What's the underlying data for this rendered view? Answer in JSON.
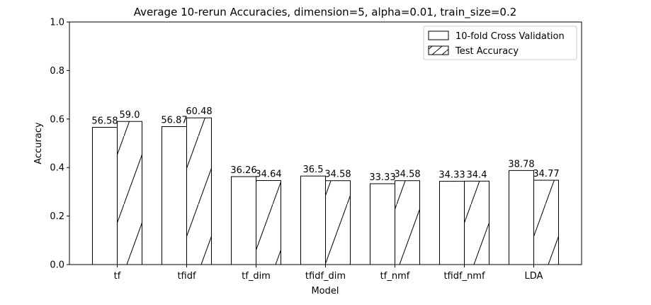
{
  "chart_data": {
    "type": "bar",
    "title": "Average 10-rerun Accuracies, dimension=5, alpha=0.01, train_size=0.2",
    "xlabel": "Model",
    "ylabel": "Accuracy",
    "ylim": [
      0,
      1.0
    ],
    "yticks": [
      "0.0",
      "0.2",
      "0.4",
      "0.6",
      "0.8",
      "1.0"
    ],
    "categories": [
      "tf",
      "tfidf",
      "tf_dim",
      "tfidf_dim",
      "tf_nmf",
      "tfidf_nmf",
      "LDA"
    ],
    "series": [
      {
        "name": "10-fold Cross Validation",
        "values": [
          0.5658,
          0.5687,
          0.3626,
          0.365,
          0.3333,
          0.3433,
          0.3878
        ],
        "labels": [
          "56.58",
          "56.87",
          "36.26",
          "36.5",
          "33.33",
          "34.33",
          "38.78"
        ],
        "hatch": "none"
      },
      {
        "name": "Test Accuracy",
        "values": [
          0.59,
          0.6048,
          0.3464,
          0.3458,
          0.3458,
          0.344,
          0.3477
        ],
        "labels": [
          "59.0",
          "60.48",
          "34.64",
          "34.58",
          "34.58",
          "34.4",
          "34.77"
        ],
        "hatch": "/"
      }
    ],
    "legend": "top-right",
    "grid": false,
    "bar_color": "#ffffff",
    "edge_color": "#000000"
  }
}
